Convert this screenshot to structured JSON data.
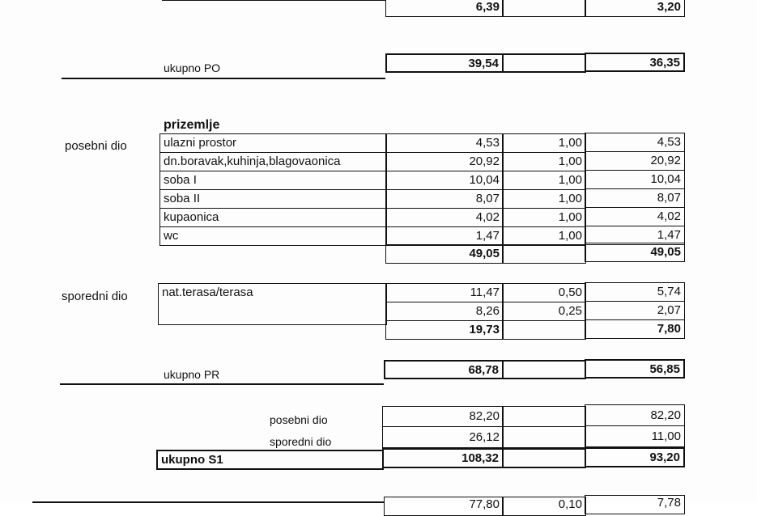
{
  "top_partial": {
    "area": "6,39",
    "weighted": "3,20"
  },
  "ukupno_po": {
    "label": "ukupno PO",
    "area": "39,54",
    "weighted": "36,35"
  },
  "prizemlje": {
    "heading": "prizemlje",
    "posebni": {
      "label": "posebni dio",
      "rows": [
        {
          "name": "ulazni prostor",
          "area": "4,53",
          "coef": "1,00",
          "weighted": "4,53"
        },
        {
          "name": "dn.boravak,kuhinja,blagovaonica",
          "area": "20,92",
          "coef": "1,00",
          "weighted": "20,92"
        },
        {
          "name": "soba I",
          "area": "10,04",
          "coef": "1,00",
          "weighted": "10,04"
        },
        {
          "name": "soba II",
          "area": "8,07",
          "coef": "1,00",
          "weighted": "8,07"
        },
        {
          "name": "kupaonica",
          "area": "4,02",
          "coef": "1,00",
          "weighted": "4,02"
        },
        {
          "name": "wc",
          "area": "1,47",
          "coef": "1,00",
          "weighted": "1,47"
        }
      ],
      "total_area": "49,05",
      "total_weighted": "49,05"
    },
    "sporedni": {
      "label": "sporedni dio",
      "rows": [
        {
          "name": "nat.terasa/terasa",
          "area": "11,47",
          "coef": "0,50",
          "weighted": "5,74"
        },
        {
          "name": "",
          "area": "8,26",
          "coef": "0,25",
          "weighted": "2,07"
        }
      ],
      "total_area": "19,73",
      "total_weighted": "7,80"
    }
  },
  "ukupno_pr": {
    "label": "ukupno PR",
    "area": "68,78",
    "weighted": "56,85"
  },
  "summary": {
    "posebni": {
      "label": "posebni dio",
      "area": "82,20",
      "weighted": "82,20"
    },
    "sporedni": {
      "label": "sporedni dio",
      "area": "26,12",
      "weighted": "11,00"
    },
    "total": {
      "label": "ukupno S1",
      "area": "108,32",
      "weighted": "93,20"
    }
  },
  "bottom_partial": {
    "area": "77,80",
    "coef": "0,10",
    "weighted": "7,78"
  }
}
